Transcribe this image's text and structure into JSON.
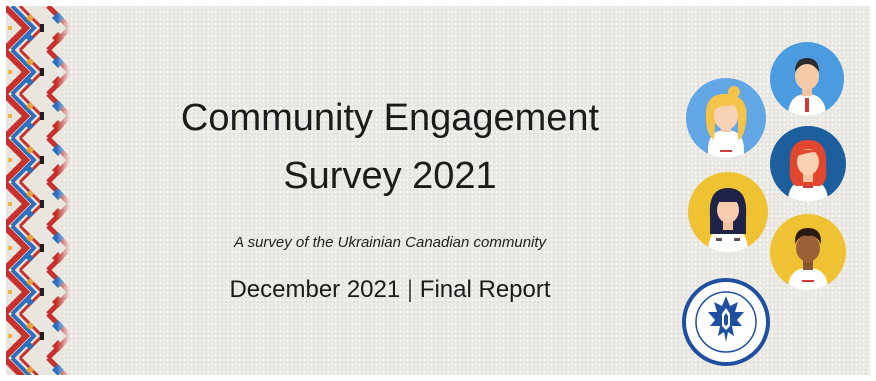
{
  "title": {
    "line1": "Community Engagement",
    "line2": "Survey 2021"
  },
  "subtitle": "A survey of the Ukrainian Canadian community",
  "report": {
    "date": "December 2021",
    "separator": "|",
    "label": "Final Report"
  },
  "avatars": [
    {
      "icon": "blonde-woman-avatar-icon",
      "bg": "#62a6e6"
    },
    {
      "icon": "man-avatar-icon",
      "bg": "#4b9be0"
    },
    {
      "icon": "red-haired-woman-avatar-icon",
      "bg": "#1d5f9c"
    },
    {
      "icon": "dark-haired-woman-avatar-icon",
      "bg": "#efc233"
    },
    {
      "icon": "curly-haired-man-avatar-icon",
      "bg": "#efc233"
    }
  ],
  "logo": {
    "icon": "ukrainian-canadian-congress-logo-icon",
    "color": "#1f4f9e"
  },
  "colors": {
    "text": "#1b1b1b",
    "background": "#ecebe5",
    "border_red": "#c8302b",
    "border_blue": "#2d6fbf"
  }
}
